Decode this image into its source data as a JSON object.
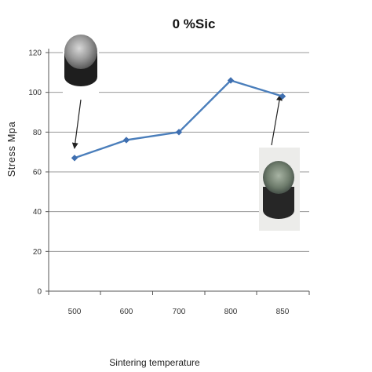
{
  "chart_data": {
    "type": "line",
    "title": "0 %Sic",
    "xlabel": "Sintering temperature",
    "ylabel": "Stress Mpa",
    "categories": [
      "500",
      "600",
      "700",
      "800",
      "850"
    ],
    "series": [
      {
        "values": [
          67,
          76,
          80,
          106,
          98
        ]
      }
    ],
    "ylim": [
      0,
      120
    ],
    "yticks": [
      "0",
      "20",
      "40",
      "60",
      "80",
      "100",
      "120"
    ],
    "grid": "horizontal",
    "legend": "none",
    "colors": {
      "line": "#4a7ebb",
      "marker": "#3f6fb0",
      "grid": "#9a9a9a",
      "axis": "#555555",
      "arrow": "#222222"
    },
    "annotations": [
      {
        "type": "sample-photo",
        "points_to": "500"
      },
      {
        "type": "sample-photo",
        "points_to": "850"
      }
    ]
  }
}
